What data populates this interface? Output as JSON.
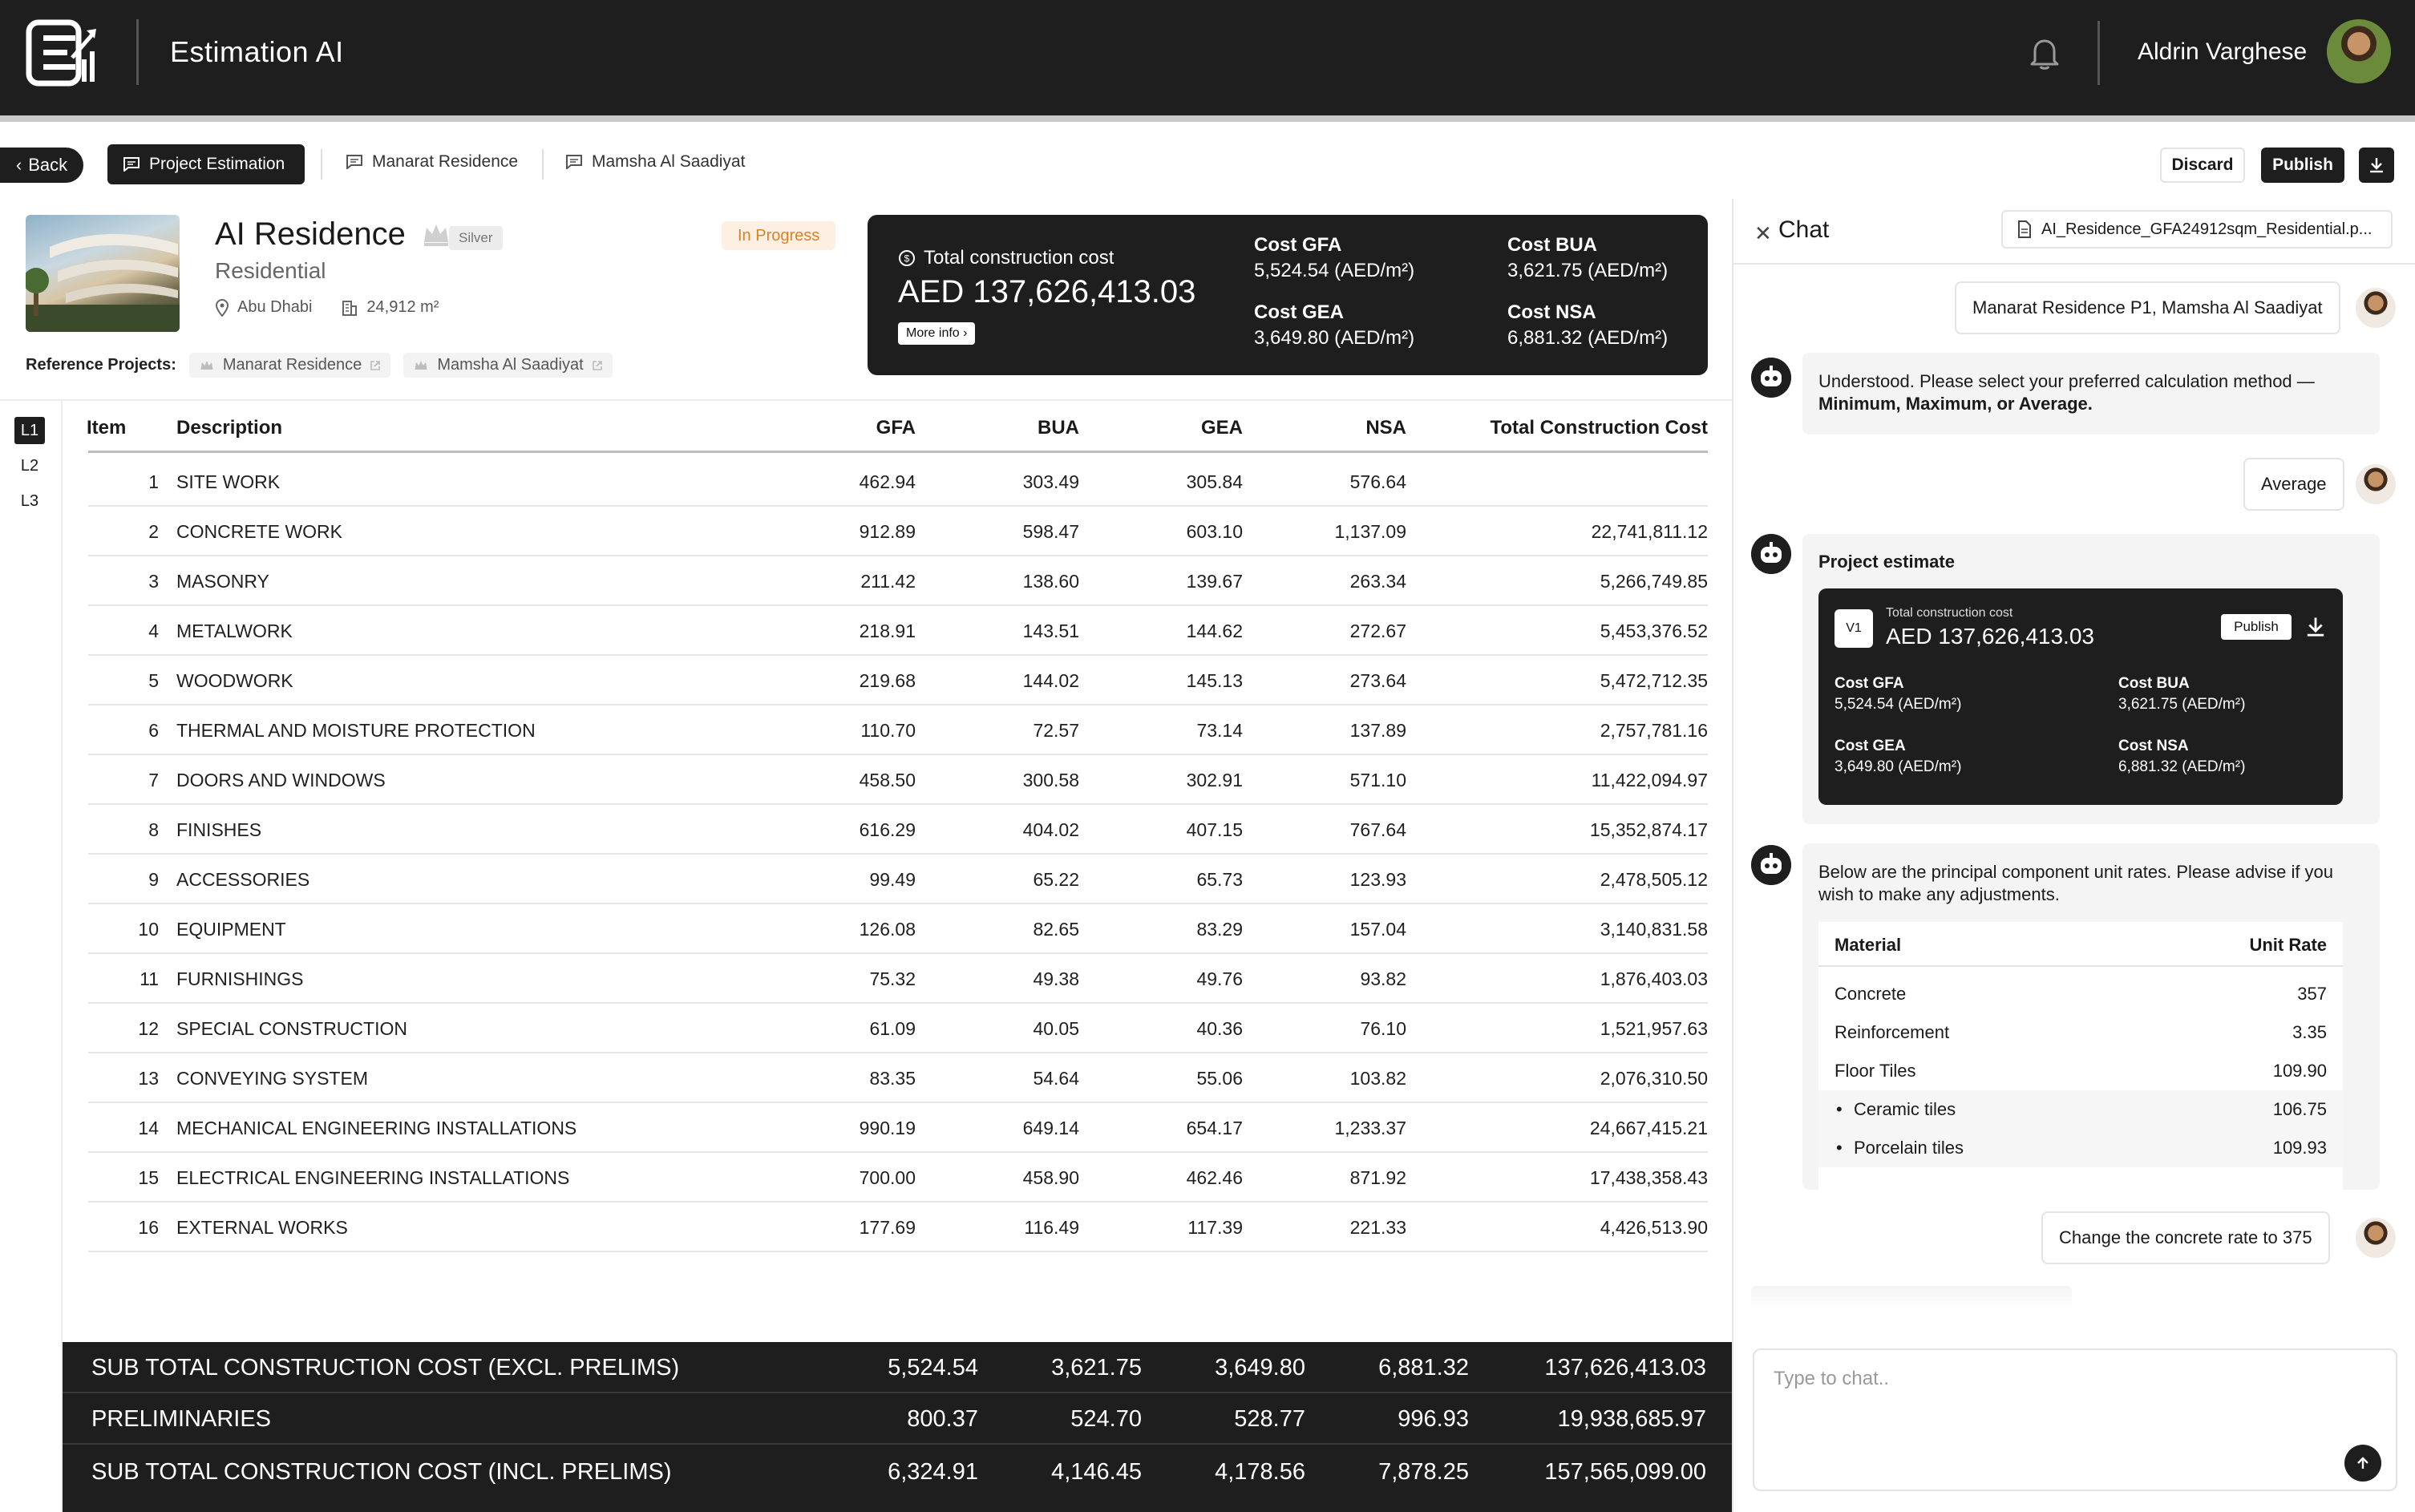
{
  "header": {
    "app_title": "Estimation AI",
    "user_name": "Aldrin Varghese",
    "icons": {
      "logo": "estimation-ai-logo",
      "notification": "bell-icon",
      "avatar": "user-avatar"
    }
  },
  "toolbar": {
    "back_label": "Back",
    "tabs": [
      {
        "label": "Project Estimation",
        "active": true
      },
      {
        "label": "Manarat Residence",
        "active": false
      },
      {
        "label": "Mamsha Al Saadiyat",
        "active": false
      }
    ],
    "discard_label": "Discard",
    "publish_label": "Publish"
  },
  "project": {
    "name": "AI Residence",
    "tier": "Silver",
    "type": "Residential",
    "location": "Abu Dhabi",
    "area": "24,912 m²",
    "status": "In Progress",
    "reference_label": "Reference Projects:",
    "references": [
      "Manarat Residence",
      "Mamsha Al Saadiyat"
    ]
  },
  "cost_summary": {
    "total_label": "Total construction cost",
    "total_value": "AED 137,626,413.03",
    "more_info_label": "More info ›",
    "items": [
      {
        "key": "Cost GFA",
        "value": "5,524.54 (AED/m²)"
      },
      {
        "key": "Cost BUA",
        "value": "3,621.75 (AED/m²)"
      },
      {
        "key": "Cost GEA",
        "value": "3,649.80  (AED/m²)"
      },
      {
        "key": "Cost NSA",
        "value": "6,881.32   (AED/m²)"
      }
    ]
  },
  "levels": [
    "L1",
    "L2",
    "L3"
  ],
  "table": {
    "columns": [
      "Item",
      "Description",
      "GFA",
      "BUA",
      "GEA",
      "NSA",
      "Total Construction Cost"
    ],
    "rows": [
      {
        "item": "1",
        "desc": "SITE WORK",
        "gfa": "462.94",
        "bua": "303.49",
        "gea": "305.84",
        "nsa": "576.64",
        "total": ""
      },
      {
        "item": "2",
        "desc": "CONCRETE WORK",
        "gfa": "912.89",
        "bua": "598.47",
        "gea": "603.10",
        "nsa": "1,137.09",
        "total": "22,741,811.12"
      },
      {
        "item": "3",
        "desc": "MASONRY",
        "gfa": "211.42",
        "bua": "138.60",
        "gea": "139.67",
        "nsa": "263.34",
        "total": "5,266,749.85"
      },
      {
        "item": "4",
        "desc": "METALWORK",
        "gfa": "218.91",
        "bua": "143.51",
        "gea": "144.62",
        "nsa": "272.67",
        "total": "5,453,376.52"
      },
      {
        "item": "5",
        "desc": "WOODWORK",
        "gfa": "219.68",
        "bua": "144.02",
        "gea": "145.13",
        "nsa": "273.64",
        "total": "5,472,712.35"
      },
      {
        "item": "6",
        "desc": "THERMAL AND MOISTURE PROTECTION",
        "gfa": "110.70",
        "bua": "72.57",
        "gea": "73.14",
        "nsa": "137.89",
        "total": "2,757,781.16"
      },
      {
        "item": "7",
        "desc": "DOORS AND WINDOWS",
        "gfa": "458.50",
        "bua": "300.58",
        "gea": "302.91",
        "nsa": "571.10",
        "total": "11,422,094.97"
      },
      {
        "item": "8",
        "desc": "FINISHES",
        "gfa": "616.29",
        "bua": "404.02",
        "gea": "407.15",
        "nsa": "767.64",
        "total": "15,352,874.17"
      },
      {
        "item": "9",
        "desc": "ACCESSORIES",
        "gfa": "99.49",
        "bua": "65.22",
        "gea": "65.73",
        "nsa": "123.93",
        "total": "2,478,505.12"
      },
      {
        "item": "10",
        "desc": "EQUIPMENT",
        "gfa": "126.08",
        "bua": "82.65",
        "gea": "83.29",
        "nsa": "157.04",
        "total": "3,140,831.58"
      },
      {
        "item": "11",
        "desc": "FURNISHINGS",
        "gfa": "75.32",
        "bua": "49.38",
        "gea": "49.76",
        "nsa": "93.82",
        "total": "1,876,403.03"
      },
      {
        "item": "12",
        "desc": "SPECIAL CONSTRUCTION",
        "gfa": "61.09",
        "bua": "40.05",
        "gea": "40.36",
        "nsa": "76.10",
        "total": "1,521,957.63"
      },
      {
        "item": "13",
        "desc": "CONVEYING SYSTEM",
        "gfa": "83.35",
        "bua": "54.64",
        "gea": "55.06",
        "nsa": "103.82",
        "total": "2,076,310.50"
      },
      {
        "item": "14",
        "desc": "MECHANICAL ENGINEERING INSTALLATIONS",
        "gfa": "990.19",
        "bua": "649.14",
        "gea": "654.17",
        "nsa": "1,233.37",
        "total": "24,667,415.21"
      },
      {
        "item": "15",
        "desc": "ELECTRICAL ENGINEERING INSTALLATIONS",
        "gfa": "700.00",
        "bua": "458.90",
        "gea": "462.46",
        "nsa": "871.92",
        "total": "17,438,358.43"
      },
      {
        "item": "16",
        "desc": "EXTERNAL WORKS",
        "gfa": "177.69",
        "bua": "116.49",
        "gea": "117.39",
        "nsa": "221.33",
        "total": "4,426,513.90"
      }
    ]
  },
  "totals": [
    {
      "label": "SUB TOTAL CONSTRUCTION COST (EXCL. PRELIMS)",
      "gfa": "5,524.54",
      "bua": "3,621.75",
      "gea": "3,649.80",
      "nsa": "6,881.32",
      "total": "137,626,413.03"
    },
    {
      "label": "PRELIMINARIES",
      "gfa": "800.37",
      "bua": "524.70",
      "gea": "528.77",
      "nsa": "996.93",
      "total": "19,938,685.97"
    },
    {
      "label": "SUB TOTAL CONSTRUCTION COST (INCL. PRELIMS)",
      "gfa": "6,324.91",
      "bua": "4,146.45",
      "gea": "4,178.56",
      "nsa": "7,878.25",
      "total": "157,565,099.00"
    }
  ],
  "chat": {
    "title": "Chat",
    "file_name": "AI_Residence_GFA24912sqm_Residential.p...",
    "msg_user_1": "Manarat Residence P1, Mamsha Al Saadiyat",
    "msg_bot_1_a": "Understood. Please select your preferred calculation method —",
    "msg_bot_1_b": "Minimum, Maximum, or Average.",
    "msg_user_2": "Average",
    "msg_bot_2_title": "Project estimate",
    "estimate_card": {
      "version": "V1",
      "label": "Total construction cost",
      "value": "AED 137,626,413.03",
      "publish_label": "Publish",
      "items": [
        {
          "key": "Cost GFA",
          "value": "5,524.54 (AED/m²)"
        },
        {
          "key": "Cost BUA",
          "value": "3,621.75 (AED/m²)"
        },
        {
          "key": "Cost GEA",
          "value": "3,649.80  (AED/m²)"
        },
        {
          "key": "Cost NSA",
          "value": "6,881.32  (AED/m²)"
        }
      ]
    },
    "msg_bot_3": "Below are the principal component unit rates. Please advise if you wish to make any adjustments.",
    "rates": {
      "col_material": "Material",
      "col_rate": "Unit Rate",
      "rows": [
        {
          "name": "Concrete",
          "rate": "357",
          "sub": false
        },
        {
          "name": "Reinforcement",
          "rate": "3.35",
          "sub": false
        },
        {
          "name": "Floor Tiles",
          "rate": "109.90",
          "sub": false
        },
        {
          "name": "Ceramic tiles",
          "rate": "106.75",
          "sub": true
        },
        {
          "name": "Porcelain tiles",
          "rate": "109.93",
          "sub": true
        }
      ]
    },
    "msg_user_3": "Change the concrete rate to 375",
    "input_placeholder": "Type to chat.."
  }
}
